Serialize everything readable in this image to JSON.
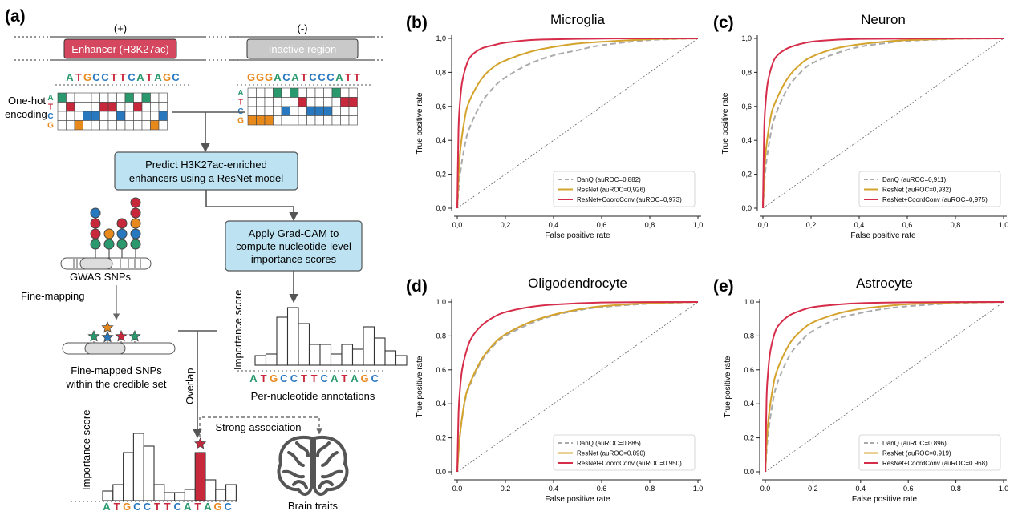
{
  "workflow": {
    "panel_label": "(a)",
    "positive_sign": "(+)",
    "negative_sign": "(-)",
    "enhancer_label": "Enhancer (H3K27ac)",
    "inactive_label": "Inactive region",
    "seq_positive": "ATGCCTTCATAGC",
    "seq_negative": "GGGACATCCCATT",
    "onehot_label_line1": "One-hot",
    "onehot_label_line2": "encoding",
    "bases": [
      "A",
      "T",
      "C",
      "G"
    ],
    "predict_line1": "Predict H3K27ac-enriched",
    "predict_line2": "enhancers using a ResNet model",
    "gradcam_line1": "Apply Grad-CAM to",
    "gradcam_line2": "compute nucleotide-level",
    "gradcam_line3": "importance scores",
    "gwas_label": "GWAS SNPs",
    "finemapping_label": "Fine-mapping",
    "finemapped_line1": "Fine-mapped SNPs",
    "finemapped_line2": "within the credible set",
    "overlap_label": "Overlap",
    "importance_label": "Importance score",
    "per_nucleotide_label": "Per-nucleotide annotations",
    "strong_association_label": "Strong association",
    "brain_traits_label": "Brain traits",
    "base_colors": {
      "A": "#2a9a6e",
      "T": "#c8283c",
      "G": "#e8891c",
      "C": "#2878c0"
    },
    "box_color": "#bde3f2",
    "enhancer_color": "#d4475f",
    "inactive_color": "#c9c9c9"
  },
  "chart_data": [
    {
      "type": "line",
      "panel": "(b)",
      "title": "Microglia",
      "xlabel": "False positive rate",
      "ylabel": "True positive rate",
      "xlim": [
        0,
        1
      ],
      "ylim": [
        0,
        1
      ],
      "xticks": [
        "0,0",
        "0,2",
        "0,4",
        "0,6",
        "0,8",
        "1,0"
      ],
      "yticks": [
        "0,0",
        "0,2",
        "0,4",
        "0,6",
        "0,8",
        "1,0"
      ],
      "legend_position": "bottom-right",
      "series": [
        {
          "name": "DanQ (auROC=0,882)",
          "color": "#aaaaaa",
          "dashed": true,
          "x": [
            0,
            0.01,
            0.03,
            0.05,
            0.1,
            0.15,
            0.2,
            0.3,
            0.4,
            0.5,
            0.6,
            0.8,
            1.0
          ],
          "y": [
            0,
            0.18,
            0.36,
            0.47,
            0.62,
            0.71,
            0.77,
            0.85,
            0.9,
            0.93,
            0.96,
            0.99,
            1.0
          ]
        },
        {
          "name": "ResNet (auROC=0,926)",
          "color": "#d4a32c",
          "dashed": false,
          "x": [
            0,
            0.01,
            0.03,
            0.05,
            0.1,
            0.15,
            0.2,
            0.3,
            0.4,
            0.5,
            0.6,
            0.8,
            1.0
          ],
          "y": [
            0,
            0.3,
            0.52,
            0.63,
            0.76,
            0.83,
            0.87,
            0.92,
            0.95,
            0.97,
            0.98,
            0.995,
            1.0
          ]
        },
        {
          "name": "ResNet+CoordConv (auROC=0,973)",
          "color": "#d62d4a",
          "dashed": false,
          "x": [
            0,
            0.005,
            0.01,
            0.02,
            0.04,
            0.06,
            0.1,
            0.15,
            0.2,
            0.3,
            0.4,
            0.6,
            1.0
          ],
          "y": [
            0,
            0.45,
            0.6,
            0.74,
            0.85,
            0.9,
            0.94,
            0.96,
            0.975,
            0.99,
            0.995,
            0.999,
            1.0
          ]
        }
      ]
    },
    {
      "type": "line",
      "panel": "(c)",
      "title": "Neuron",
      "xlabel": "False positive rate",
      "ylabel": "True positive rate",
      "xlim": [
        0,
        1
      ],
      "ylim": [
        0,
        1
      ],
      "xticks": [
        "0,0",
        "0,2",
        "0,4",
        "0,6",
        "0,8",
        "1,0"
      ],
      "yticks": [
        "0,0",
        "0,2",
        "0,4",
        "0,6",
        "0,8",
        "1,0"
      ],
      "legend_position": "bottom-right",
      "series": [
        {
          "name": "DanQ (auROC=0,911)",
          "color": "#aaaaaa",
          "dashed": true,
          "x": [
            0,
            0.01,
            0.03,
            0.05,
            0.1,
            0.15,
            0.2,
            0.3,
            0.4,
            0.5,
            0.6,
            0.8,
            1.0
          ],
          "y": [
            0,
            0.22,
            0.42,
            0.54,
            0.7,
            0.79,
            0.85,
            0.91,
            0.95,
            0.97,
            0.985,
            0.997,
            1.0
          ]
        },
        {
          "name": "ResNet (auROC=0,932)",
          "color": "#d4a32c",
          "dashed": false,
          "x": [
            0,
            0.01,
            0.03,
            0.05,
            0.1,
            0.15,
            0.2,
            0.3,
            0.4,
            0.5,
            0.6,
            0.8,
            1.0
          ],
          "y": [
            0,
            0.3,
            0.52,
            0.62,
            0.76,
            0.84,
            0.89,
            0.94,
            0.965,
            0.98,
            0.99,
            0.998,
            1.0
          ]
        },
        {
          "name": "ResNet+CoordConv (auROC=0,975)",
          "color": "#d62d4a",
          "dashed": false,
          "x": [
            0,
            0.005,
            0.01,
            0.02,
            0.04,
            0.06,
            0.1,
            0.15,
            0.2,
            0.3,
            0.4,
            0.6,
            1.0
          ],
          "y": [
            0,
            0.45,
            0.6,
            0.74,
            0.85,
            0.9,
            0.94,
            0.965,
            0.98,
            0.992,
            0.997,
            0.999,
            1.0
          ]
        }
      ]
    },
    {
      "type": "line",
      "panel": "(d)",
      "title": "Oligodendrocyte",
      "xlabel": "False positive rate",
      "ylabel": "True positive rate",
      "xlim": [
        0,
        1
      ],
      "ylim": [
        0,
        1
      ],
      "xticks": [
        "0.0",
        "0.2",
        "0.4",
        "0.6",
        "0.8",
        "1.0"
      ],
      "yticks": [
        "0.0",
        "0.2",
        "0.4",
        "0.6",
        "0.8",
        "1.0"
      ],
      "legend_position": "bottom-right",
      "series": [
        {
          "name": "DanQ (auROC=0.885)",
          "color": "#aaaaaa",
          "dashed": true,
          "x": [
            0,
            0.01,
            0.03,
            0.05,
            0.1,
            0.15,
            0.2,
            0.3,
            0.4,
            0.5,
            0.6,
            0.8,
            1.0
          ],
          "y": [
            0,
            0.2,
            0.4,
            0.5,
            0.65,
            0.74,
            0.8,
            0.87,
            0.92,
            0.95,
            0.97,
            0.99,
            1.0
          ]
        },
        {
          "name": "ResNet (auROC=0.890)",
          "color": "#d4a32c",
          "dashed": false,
          "x": [
            0,
            0.01,
            0.03,
            0.05,
            0.1,
            0.15,
            0.2,
            0.3,
            0.4,
            0.5,
            0.6,
            0.8,
            1.0
          ],
          "y": [
            0,
            0.2,
            0.41,
            0.51,
            0.66,
            0.75,
            0.81,
            0.88,
            0.925,
            0.955,
            0.975,
            0.993,
            1.0
          ]
        },
        {
          "name": "ResNet+CoordConv (auROC=0.950)",
          "color": "#d62d4a",
          "dashed": false,
          "x": [
            0,
            0.005,
            0.01,
            0.02,
            0.04,
            0.06,
            0.1,
            0.15,
            0.2,
            0.3,
            0.4,
            0.6,
            1.0
          ],
          "y": [
            0,
            0.33,
            0.46,
            0.6,
            0.72,
            0.79,
            0.86,
            0.91,
            0.94,
            0.97,
            0.985,
            0.997,
            1.0
          ]
        }
      ]
    },
    {
      "type": "line",
      "panel": "(e)",
      "title": "Astrocyte",
      "xlabel": "False positive rate",
      "ylabel": "True positive rate",
      "xlim": [
        0,
        1
      ],
      "ylim": [
        0,
        1
      ],
      "xticks": [
        "0.0",
        "0.2",
        "0.4",
        "0.6",
        "0.8",
        "1.0"
      ],
      "yticks": [
        "0.0",
        "0.2",
        "0.4",
        "0.6",
        "0.8",
        "1.0"
      ],
      "legend_position": "bottom-right",
      "series": [
        {
          "name": "DanQ (auROC=0.896)",
          "color": "#aaaaaa",
          "dashed": true,
          "x": [
            0,
            0.01,
            0.03,
            0.05,
            0.1,
            0.15,
            0.2,
            0.3,
            0.4,
            0.5,
            0.6,
            0.8,
            1.0
          ],
          "y": [
            0,
            0.2,
            0.4,
            0.52,
            0.68,
            0.77,
            0.83,
            0.9,
            0.935,
            0.96,
            0.975,
            0.993,
            1.0
          ]
        },
        {
          "name": "ResNet (auROC=0.919)",
          "color": "#d4a32c",
          "dashed": false,
          "x": [
            0,
            0.01,
            0.03,
            0.05,
            0.1,
            0.15,
            0.2,
            0.3,
            0.4,
            0.5,
            0.6,
            0.8,
            1.0
          ],
          "y": [
            0,
            0.27,
            0.48,
            0.6,
            0.75,
            0.83,
            0.88,
            0.93,
            0.96,
            0.975,
            0.987,
            0.997,
            1.0
          ]
        },
        {
          "name": "ResNet+CoordConv (auROC=0.968)",
          "color": "#d62d4a",
          "dashed": false,
          "x": [
            0,
            0.005,
            0.01,
            0.02,
            0.04,
            0.06,
            0.1,
            0.15,
            0.2,
            0.3,
            0.4,
            0.6,
            1.0
          ],
          "y": [
            0,
            0.42,
            0.56,
            0.7,
            0.82,
            0.87,
            0.92,
            0.95,
            0.97,
            0.985,
            0.993,
            0.998,
            1.0
          ]
        }
      ]
    }
  ]
}
